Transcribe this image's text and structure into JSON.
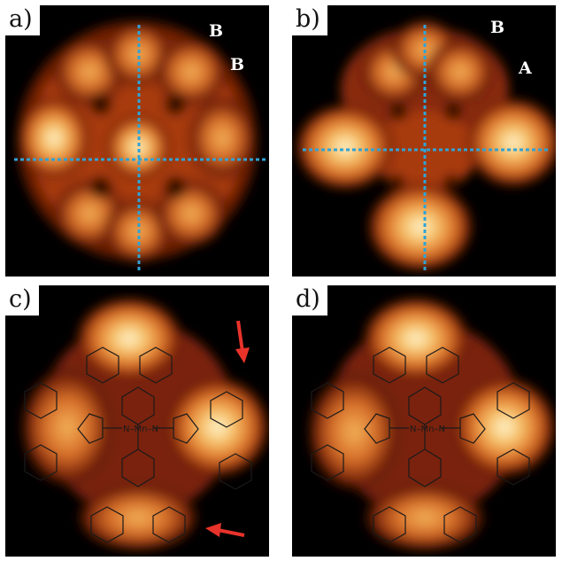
{
  "panels": [
    {
      "label": "a)",
      "sites": [
        "B",
        "B"
      ]
    },
    {
      "label": "b)",
      "sites": [
        "B",
        "A"
      ]
    },
    {
      "label": "c)"
    },
    {
      "label": "d)"
    }
  ],
  "molecule": {
    "center": "Mn",
    "left_N": "N",
    "right_N": "N",
    "atoms": [
      "N",
      "N",
      "N",
      "N",
      "N",
      "N",
      "N",
      "N",
      "S",
      "H",
      "H",
      "S"
    ]
  },
  "colors": {
    "background": "#000000",
    "glow_core": "#fff7d6",
    "glow_mid": "#f0a040",
    "glow_edge": "#8a2a08",
    "guide_line": "#2fa3d6",
    "arrow": "#e8332a",
    "structure": "#1a1a1a"
  }
}
